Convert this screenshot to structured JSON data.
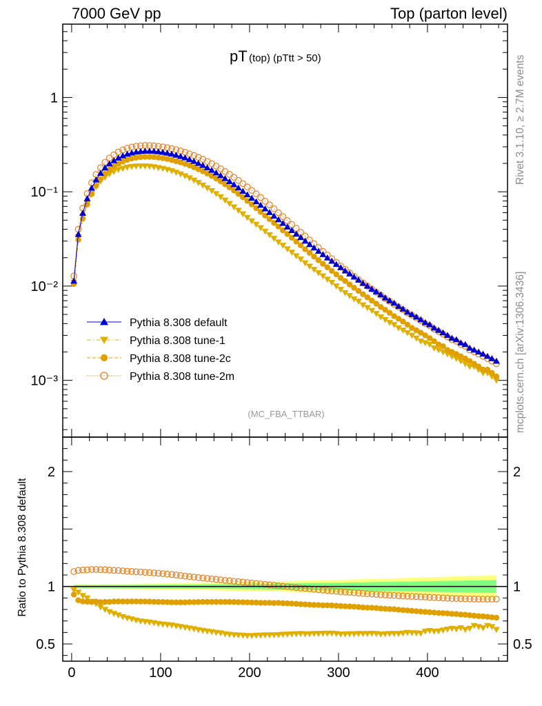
{
  "header": {
    "left": "7000 GeV pp",
    "right": "Top (parton level)"
  },
  "sidebar": {
    "rivet": "Rivet 3.1.10, ≥ 2.7M events",
    "mcplots": "mcplots.cern.ch [arXiv:1306.3436]"
  },
  "chart_data": {
    "type": "scatter",
    "title_main": "pT",
    "title_sub": " (top) (pTtt > 50)",
    "analysis_label": "(MC_FBA_TTBAR)",
    "x_ticks": [
      "0",
      "100",
      "200",
      "300",
      "400"
    ],
    "main": {
      "yscale": "log",
      "ylim": [
        0.00025,
        6
      ],
      "y_ticks": [
        {
          "value": 1,
          "label": "1"
        },
        {
          "value": 0.1,
          "label": "10⁻¹"
        },
        {
          "value": 0.01,
          "label": "10⁻²"
        },
        {
          "value": 0.001,
          "label": "10⁻³"
        }
      ]
    },
    "ratio": {
      "ylabel": "Ratio to Pythia 8.308 default",
      "ylim": [
        0.35,
        2.3
      ],
      "y_ticks": [
        {
          "value": 0.5,
          "label": "0.5"
        },
        {
          "value": 1,
          "label": "1"
        },
        {
          "value": 2,
          "label": "2"
        }
      ]
    },
    "xlim": [
      -10,
      490
    ],
    "x": [
      2.5,
      7.5,
      12.5,
      17.5,
      22.5,
      27.5,
      32.5,
      37.5,
      42.5,
      47.5,
      52.5,
      57.5,
      62.5,
      67.5,
      72.5,
      77.5,
      82.5,
      87.5,
      92.5,
      97.5,
      102.5,
      107.5,
      112.5,
      117.5,
      122.5,
      127.5,
      132.5,
      137.5,
      142.5,
      147.5,
      152.5,
      157.5,
      162.5,
      167.5,
      172.5,
      177.5,
      182.5,
      187.5,
      192.5,
      197.5,
      202.5,
      207.5,
      212.5,
      217.5,
      222.5,
      227.5,
      232.5,
      237.5,
      242.5,
      247.5,
      252.5,
      257.5,
      262.5,
      267.5,
      272.5,
      277.5,
      282.5,
      287.5,
      292.5,
      297.5,
      302.5,
      307.5,
      312.5,
      317.5,
      322.5,
      327.5,
      332.5,
      337.5,
      342.5,
      347.5,
      352.5,
      357.5,
      362.5,
      367.5,
      372.5,
      377.5,
      382.5,
      387.5,
      392.5,
      397.5,
      402.5,
      407.5,
      412.5,
      417.5,
      422.5,
      427.5,
      432.5,
      437.5,
      442.5,
      447.5,
      452.5,
      457.5,
      462.5,
      467.5,
      472.5,
      477.5
    ],
    "series": [
      {
        "name": "Pythia 8.308 default",
        "style": "line-triangle-up",
        "color": "#0000cc",
        "values": [
          0.0113,
          0.0353,
          0.0594,
          0.0846,
          0.1093,
          0.1339,
          0.1574,
          0.1791,
          0.1979,
          0.2141,
          0.2283,
          0.2405,
          0.2508,
          0.2587,
          0.2645,
          0.2681,
          0.27,
          0.2702,
          0.2689,
          0.2663,
          0.2625,
          0.2576,
          0.2516,
          0.2449,
          0.2373,
          0.2291,
          0.22,
          0.2105,
          0.2006,
          0.1904,
          0.1799,
          0.1694,
          0.1589,
          0.1486,
          0.1384,
          0.1286,
          0.1191,
          0.11,
          0.1014,
          0.0932,
          0.0857,
          0.0786,
          0.072,
          0.066,
          0.0604,
          0.0553,
          0.0506,
          0.0463,
          0.0424,
          0.0389,
          0.0356,
          0.0327,
          0.03,
          0.0276,
          0.0254,
          0.0234,
          0.0216,
          0.0199,
          0.0184,
          0.017,
          0.0157,
          0.0145,
          0.0135,
          0.0125,
          0.0116,
          0.0107,
          0.01,
          0.0093,
          0.0087,
          0.0081,
          0.0075,
          0.007,
          0.0066,
          0.0061,
          0.0057,
          0.0053,
          0.005,
          0.0047,
          0.0044,
          0.0041,
          0.0039,
          0.0036,
          0.0034,
          0.0032,
          0.003,
          0.0028,
          0.0027,
          0.0025,
          0.0024,
          0.0022,
          0.0021,
          0.002,
          0.0019,
          0.0018,
          0.0017,
          0.0016
        ],
        "ratio": [
          1,
          1,
          1,
          1,
          1,
          1,
          1,
          1,
          1,
          1,
          1,
          1,
          1,
          1,
          1,
          1,
          1,
          1,
          1,
          1,
          1,
          1,
          1,
          1,
          1,
          1,
          1,
          1,
          1,
          1,
          1,
          1,
          1,
          1,
          1,
          1,
          1,
          1,
          1,
          1,
          1,
          1,
          1,
          1,
          1,
          1,
          1,
          1,
          1,
          1,
          1,
          1,
          1,
          1,
          1,
          1,
          1,
          1,
          1,
          1,
          1,
          1,
          1,
          1,
          1,
          1,
          1,
          1,
          1,
          1,
          1,
          1,
          1,
          1,
          1,
          1,
          1,
          1,
          1,
          1,
          1,
          1,
          1,
          1,
          1,
          1,
          1,
          1,
          1,
          1,
          1,
          1,
          1,
          1,
          1,
          1
        ]
      },
      {
        "name": "Pythia 8.308 tune-1",
        "style": "dashdot-triangle-down",
        "color": "#e0b000",
        "values": [
          0.011,
          0.0334,
          0.0547,
          0.076,
          0.0954,
          0.1133,
          0.1291,
          0.1426,
          0.1544,
          0.1636,
          0.1717,
          0.1771,
          0.1821,
          0.1854,
          0.187,
          0.1874,
          0.1873,
          0.1863,
          0.1839,
          0.1802,
          0.1765,
          0.172,
          0.167,
          0.1608,
          0.1544,
          0.1475,
          0.14,
          0.1328,
          0.1251,
          0.1174,
          0.1098,
          0.1026,
          0.0954,
          0.0884,
          0.0814,
          0.075,
          0.069,
          0.0635,
          0.0583,
          0.0533,
          0.049,
          0.0452,
          0.0415,
          0.0381,
          0.0349,
          0.032,
          0.0293,
          0.027,
          0.0248,
          0.0228,
          0.0209,
          0.0193,
          0.0176,
          0.0162,
          0.015,
          0.0138,
          0.0128,
          0.0118,
          0.0109,
          0.01,
          0.0092,
          0.0085,
          0.0079,
          0.0073,
          0.0069,
          0.0063,
          0.0059,
          0.0055,
          0.0051,
          0.0047,
          0.0044,
          0.0041,
          0.0039,
          0.0036,
          0.0034,
          0.0032,
          0.003,
          0.0028,
          0.0026,
          0.0025,
          0.0024,
          0.0022,
          0.0021,
          0.002,
          0.0019,
          0.0018,
          0.0017,
          0.0016,
          0.0015,
          0.0014,
          0.0014,
          0.0013,
          0.0012,
          0.0012,
          0.0011,
          0.001
        ],
        "ratio": [
          0.97,
          0.95,
          0.92,
          0.9,
          0.87,
          0.85,
          0.82,
          0.8,
          0.78,
          0.765,
          0.752,
          0.737,
          0.726,
          0.717,
          0.707,
          0.699,
          0.694,
          0.69,
          0.684,
          0.677,
          0.672,
          0.668,
          0.664,
          0.657,
          0.651,
          0.644,
          0.637,
          0.631,
          0.624,
          0.617,
          0.611,
          0.606,
          0.6,
          0.595,
          0.588,
          0.583,
          0.579,
          0.577,
          0.575,
          0.572,
          0.572,
          0.575,
          0.576,
          0.578,
          0.578,
          0.579,
          0.58,
          0.583,
          0.585,
          0.586,
          0.588,
          0.59,
          0.588,
          0.587,
          0.59,
          0.591,
          0.592,
          0.593,
          0.593,
          0.59,
          0.585,
          0.586,
          0.588,
          0.588,
          0.59,
          0.59,
          0.59,
          0.592,
          0.59,
          0.585,
          0.588,
          0.59,
          0.59,
          0.59,
          0.594,
          0.6,
          0.597,
          0.595,
          0.593,
          0.61,
          0.616,
          0.61,
          0.612,
          0.62,
          0.628,
          0.635,
          0.63,
          0.64,
          0.625,
          0.636,
          0.66,
          0.65,
          0.64,
          0.66,
          0.65,
          0.625
        ]
      },
      {
        "name": "Pythia 8.308 tune-2c",
        "style": "dashed-circle-filled",
        "color": "#e0a000",
        "values": [
          0.0105,
          0.031,
          0.052,
          0.0735,
          0.0945,
          0.116,
          0.136,
          0.155,
          0.1715,
          0.186,
          0.1985,
          0.209,
          0.218,
          0.225,
          0.23,
          0.233,
          0.2345,
          0.2345,
          0.233,
          0.2305,
          0.227,
          0.2225,
          0.217,
          0.211,
          0.2045,
          0.1975,
          0.19,
          0.182,
          0.1735,
          0.165,
          0.156,
          0.147,
          0.138,
          0.129,
          0.12,
          0.1115,
          0.103,
          0.095,
          0.0875,
          0.08,
          0.0735,
          0.067,
          0.0612,
          0.056,
          0.0512,
          0.0468,
          0.0428,
          0.039,
          0.0356,
          0.0325,
          0.0296,
          0.027,
          0.0246,
          0.0225,
          0.0205,
          0.0188,
          0.0172,
          0.0158,
          0.0145,
          0.0133,
          0.0122,
          0.0113,
          0.0104,
          0.0096,
          0.0089,
          0.0082,
          0.0076,
          0.007,
          0.0065,
          0.006,
          0.0056,
          0.0052,
          0.0048,
          0.0045,
          0.0042,
          0.0039,
          0.0036,
          0.0034,
          0.0032,
          0.003,
          0.0028,
          0.0026,
          0.0024,
          0.0023,
          0.0021,
          0.002,
          0.0019,
          0.0018,
          0.0017,
          0.0016,
          0.0015,
          0.0014,
          0.0013,
          0.0013,
          0.0012,
          0.0011
        ],
        "ratio": [
          0.93,
          0.88,
          0.87,
          0.868,
          0.865,
          0.868,
          0.864,
          0.866,
          0.866,
          0.869,
          0.87,
          0.869,
          0.869,
          0.87,
          0.87,
          0.869,
          0.869,
          0.868,
          0.867,
          0.866,
          0.865,
          0.864,
          0.862,
          0.862,
          0.862,
          0.862,
          0.864,
          0.864,
          0.865,
          0.866,
          0.866,
          0.866,
          0.866,
          0.866,
          0.866,
          0.866,
          0.865,
          0.864,
          0.863,
          0.862,
          0.861,
          0.86,
          0.858,
          0.858,
          0.858,
          0.856,
          0.857,
          0.855,
          0.853,
          0.851,
          0.849,
          0.846,
          0.844,
          0.842,
          0.84,
          0.839,
          0.836,
          0.836,
          0.835,
          0.832,
          0.83,
          0.828,
          0.826,
          0.824,
          0.822,
          0.818,
          0.816,
          0.815,
          0.812,
          0.808,
          0.806,
          0.804,
          0.802,
          0.798,
          0.795,
          0.792,
          0.788,
          0.785,
          0.782,
          0.779,
          0.776,
          0.773,
          0.77,
          0.768,
          0.766,
          0.762,
          0.76,
          0.756,
          0.754,
          0.75,
          0.746,
          0.742,
          0.74,
          0.736,
          0.732,
          0.728
        ]
      },
      {
        "name": "Pythia 8.308 tune-2m",
        "style": "dotted-circle-open",
        "color": "#e08830",
        "values": [
          0.0128,
          0.04,
          0.067,
          0.0955,
          0.1245,
          0.153,
          0.18,
          0.2055,
          0.228,
          0.247,
          0.264,
          0.278,
          0.289,
          0.298,
          0.304,
          0.308,
          0.3095,
          0.309,
          0.307,
          0.3035,
          0.299,
          0.2935,
          0.287,
          0.2795,
          0.271,
          0.262,
          0.2525,
          0.2425,
          0.232,
          0.221,
          0.21,
          0.1985,
          0.187,
          0.1755,
          0.164,
          0.153,
          0.1425,
          0.132,
          0.122,
          0.1125,
          0.1035,
          0.095,
          0.087,
          0.0795,
          0.0725,
          0.066,
          0.06,
          0.0546,
          0.0495,
          0.045,
          0.041,
          0.0372,
          0.0339,
          0.0308,
          0.0281,
          0.0256,
          0.0233,
          0.0213,
          0.0195,
          0.0178,
          0.0163,
          0.015,
          0.0138,
          0.0127,
          0.0117,
          0.0108,
          0.01,
          0.0093,
          0.0086,
          0.008,
          0.0074,
          0.0069,
          0.0064,
          0.006,
          0.0056,
          0.0052,
          0.0049,
          0.0046,
          0.0043,
          0.004,
          0.0038,
          0.0035,
          0.0033,
          0.0031,
          0.0029,
          0.0027,
          0.0026,
          0.0024,
          0.0023,
          0.0021,
          0.002,
          0.0019,
          0.0018,
          0.0017,
          0.0016,
          0.0015
        ],
        "ratio": [
          1.13,
          1.14,
          1.143,
          1.145,
          1.148,
          1.148,
          1.146,
          1.146,
          1.143,
          1.14,
          1.139,
          1.136,
          1.133,
          1.131,
          1.128,
          1.126,
          1.123,
          1.121,
          1.118,
          1.115,
          1.112,
          1.108,
          1.104,
          1.1,
          1.095,
          1.09,
          1.086,
          1.082,
          1.078,
          1.074,
          1.07,
          1.066,
          1.062,
          1.058,
          1.053,
          1.05,
          1.046,
          1.042,
          1.038,
          1.034,
          1.03,
          1.026,
          1.022,
          1.018,
          1.014,
          1.01,
          1.006,
          1.002,
          0.998,
          0.994,
          0.99,
          0.986,
          0.983,
          0.98,
          0.976,
          0.972,
          0.968,
          0.965,
          0.962,
          0.958,
          0.955,
          0.952,
          0.949,
          0.946,
          0.943,
          0.94,
          0.937,
          0.934,
          0.932,
          0.929,
          0.926,
          0.924,
          0.922,
          0.92,
          0.918,
          0.916,
          0.914,
          0.912,
          0.91,
          0.908,
          0.906,
          0.904,
          0.902,
          0.9,
          0.898,
          0.896,
          0.895,
          0.894,
          0.893,
          0.892,
          0.891,
          0.89,
          0.89,
          0.89,
          0.89,
          0.89
        ]
      }
    ]
  }
}
